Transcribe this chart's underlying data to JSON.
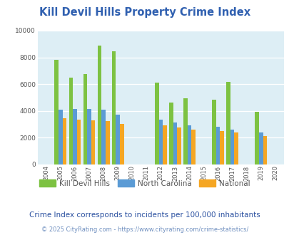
{
  "title": "Kill Devil Hills Property Crime Index",
  "years": [
    2004,
    2005,
    2006,
    2007,
    2008,
    2009,
    2010,
    2011,
    2012,
    2013,
    2014,
    2015,
    2016,
    2017,
    2018,
    2019,
    2020
  ],
  "kdh": [
    null,
    7800,
    6500,
    6750,
    8900,
    8450,
    null,
    null,
    6100,
    4650,
    4950,
    null,
    4850,
    6150,
    null,
    3950,
    null
  ],
  "nc": [
    null,
    4100,
    4150,
    4150,
    4100,
    3700,
    null,
    null,
    3350,
    3150,
    2950,
    null,
    2800,
    2600,
    null,
    2380,
    null
  ],
  "nat": [
    null,
    3450,
    3350,
    3300,
    3250,
    3050,
    null,
    null,
    2900,
    2750,
    2600,
    null,
    2500,
    2400,
    null,
    2100,
    null
  ],
  "kdh_color": "#7dc242",
  "nc_color": "#5b9bd5",
  "nat_color": "#f5a623",
  "bg_color": "#ddeef5",
  "ylim": [
    0,
    10000
  ],
  "yticks": [
    0,
    2000,
    4000,
    6000,
    8000,
    10000
  ],
  "grid_color": "#ffffff",
  "subtitle": "Crime Index corresponds to incidents per 100,000 inhabitants",
  "footer": "© 2025 CityRating.com - https://www.cityrating.com/crime-statistics/",
  "legend_labels": [
    "Kill Devil Hills",
    "North Carolina",
    "National"
  ],
  "title_color": "#3060b0",
  "subtitle_color": "#2a50a0",
  "footer_color": "#7090c0",
  "bar_width": 0.28
}
